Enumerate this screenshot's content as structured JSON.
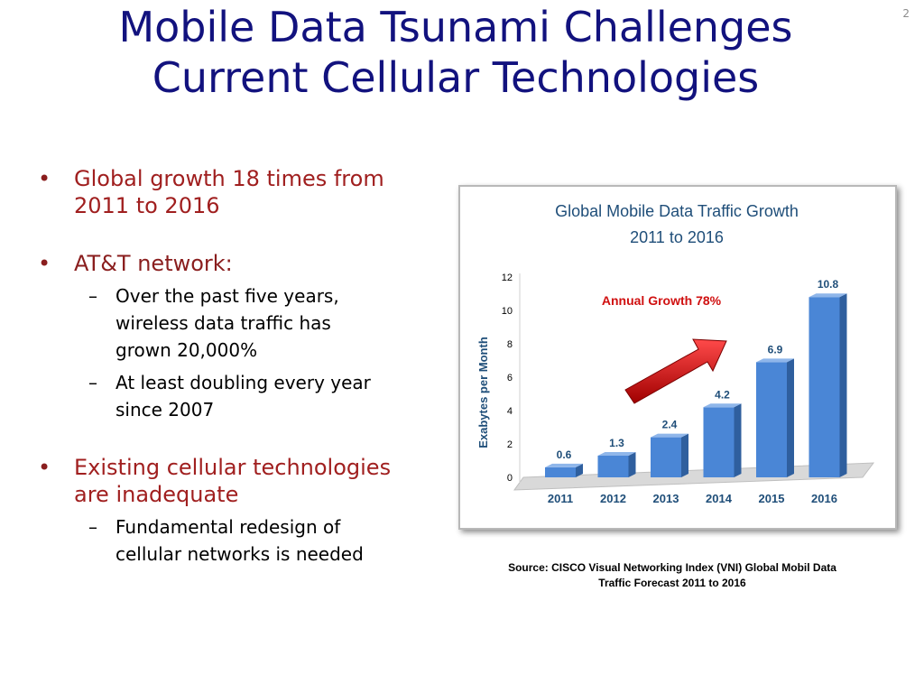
{
  "slide": {
    "number": "2",
    "title_line1": "Mobile Data Tsunami Challenges",
    "title_line2": "Current Cellular Technologies"
  },
  "bullets": [
    {
      "text_line1": "Global growth 18 times from",
      "text_line2": "2011 to 2016"
    },
    {
      "text": "AT&T network:",
      "sub": [
        {
          "line1": "Over the past five years,",
          "line2": "wireless data traffic has",
          "line3": "grown 20,000%"
        },
        {
          "line1": "At least doubling every year",
          "line2": "since 2007"
        }
      ]
    },
    {
      "text_line1": "Existing cellular technologies",
      "text_line2": "are inadequate",
      "sub": [
        {
          "line1": "Fundamental redesign of",
          "line2": "cellular networks is needed"
        }
      ]
    }
  ],
  "colors": {
    "title": "#12127e",
    "bullet_text": "#a01f1f",
    "chart_title": "#1f4e79",
    "bar_front": "#4a86d6",
    "annotation": "#d01010"
  },
  "chart_data": {
    "type": "bar",
    "title_line1": "Global Mobile  Data Traffic Growth",
    "title_line2": "2011 to 2016",
    "ylabel": "Exabytes per Month",
    "xlabel": "",
    "categories": [
      "2011",
      "2012",
      "2013",
      "2014",
      "2015",
      "2016"
    ],
    "values": [
      0.6,
      1.3,
      2.4,
      4.2,
      6.9,
      10.8
    ],
    "value_labels": [
      "0.6",
      "1.3",
      "2.4",
      "4.2",
      "6.9",
      "10.8"
    ],
    "ylim": [
      0,
      12
    ],
    "yticks": [
      "0",
      "2",
      "4",
      "6",
      "8",
      "10",
      "12"
    ],
    "annotation": "Annual  Growth 78%",
    "grid": false,
    "legend": "none"
  },
  "source_line1": "Source: CISCO Visual Networking Index (VNI) Global  Mobil Data",
  "source_line2": "Traffic Forecast 2011 to 2016"
}
